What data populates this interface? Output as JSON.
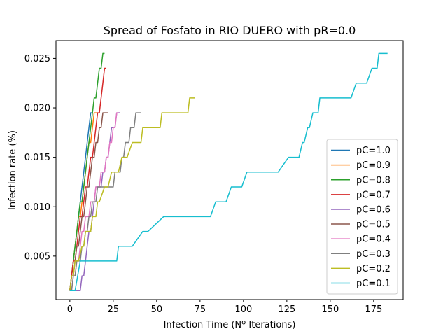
{
  "chart_data": {
    "type": "line",
    "title": "Spread of Fosfato in RIO DUERO with pR=0.0",
    "xlabel": "Infection Time (Nº Iterations)",
    "ylabel": "Infection rate (%)",
    "xlim": [
      -8,
      192
    ],
    "ylim": [
      0.0006,
      0.0268
    ],
    "xticks": [
      0,
      25,
      50,
      75,
      100,
      125,
      150,
      175
    ],
    "yticks": [
      0.005,
      0.01,
      0.015,
      0.02,
      0.025
    ],
    "xtick_labels": [
      "0",
      "25",
      "50",
      "75",
      "100",
      "125",
      "150",
      "175"
    ],
    "ytick_labels": [
      "0.005",
      "0.010",
      "0.015",
      "0.020",
      "0.025"
    ],
    "grid": false,
    "legend_position": "lower-right",
    "series": [
      {
        "name": "pC=1.0",
        "color": "#1f77b4",
        "x": [
          0,
          1,
          2,
          3,
          4,
          5,
          6,
          7,
          8,
          9,
          10,
          11,
          12,
          13
        ],
        "y": [
          0.0015,
          0.003,
          0.0045,
          0.006,
          0.0075,
          0.009,
          0.0105,
          0.012,
          0.0135,
          0.015,
          0.0165,
          0.018,
          0.0195,
          0.0195
        ]
      },
      {
        "name": "pC=0.9",
        "color": "#ff7f0e",
        "x": [
          0,
          1,
          2,
          3,
          4,
          5,
          6,
          7,
          8,
          9,
          10,
          11,
          12,
          13,
          14,
          15,
          16
        ],
        "y": [
          0.0015,
          0.003,
          0.0045,
          0.006,
          0.0075,
          0.009,
          0.009,
          0.0105,
          0.012,
          0.0135,
          0.015,
          0.0165,
          0.0165,
          0.018,
          0.0195,
          0.0195,
          0.0195
        ]
      },
      {
        "name": "pC=0.8",
        "color": "#2ca02c",
        "x": [
          0,
          1,
          2,
          3,
          4,
          5,
          6,
          7,
          8,
          9,
          10,
          11,
          12,
          13,
          14,
          15,
          16,
          17,
          18,
          19,
          20
        ],
        "y": [
          0.0015,
          0.003,
          0.0045,
          0.006,
          0.0075,
          0.009,
          0.0105,
          0.0105,
          0.012,
          0.0135,
          0.015,
          0.0165,
          0.018,
          0.0195,
          0.021,
          0.021,
          0.0225,
          0.024,
          0.024,
          0.0255,
          0.0255
        ]
      },
      {
        "name": "pC=0.7",
        "color": "#d62728",
        "x": [
          0,
          1,
          2,
          3,
          4,
          5,
          6,
          7,
          8,
          9,
          10,
          11,
          12,
          13,
          14,
          15,
          16,
          17,
          18,
          19,
          20,
          21
        ],
        "y": [
          0.0015,
          0.003,
          0.0045,
          0.0045,
          0.006,
          0.0075,
          0.009,
          0.009,
          0.0105,
          0.012,
          0.012,
          0.0135,
          0.015,
          0.015,
          0.0165,
          0.018,
          0.0195,
          0.0195,
          0.021,
          0.0225,
          0.024,
          0.024
        ]
      },
      {
        "name": "pC=0.6",
        "color": "#9467bd",
        "x": [
          0,
          1,
          2,
          3,
          4,
          5,
          6,
          7,
          8,
          9,
          10,
          11,
          12,
          13,
          14,
          15,
          16,
          17,
          18,
          19,
          20,
          21,
          22,
          23,
          24,
          25,
          26,
          27,
          28,
          29
        ],
        "y": [
          0.0015,
          0.0015,
          0.0015,
          0.0015,
          0.0015,
          0.0015,
          0.0015,
          0.003,
          0.003,
          0.0045,
          0.006,
          0.0075,
          0.0075,
          0.009,
          0.0105,
          0.012,
          0.012,
          0.012,
          0.012,
          0.0135,
          0.0135,
          0.015,
          0.015,
          0.0165,
          0.018,
          0.018,
          0.018,
          0.0195,
          0.0195,
          0.0195
        ]
      },
      {
        "name": "pC=0.5",
        "color": "#8c564b",
        "x": [
          0,
          1,
          2,
          3,
          4,
          5,
          6,
          7,
          8,
          9,
          10,
          11,
          12,
          13,
          14,
          15,
          16,
          17,
          18,
          19,
          20,
          21,
          22
        ],
        "y": [
          0.0015,
          0.003,
          0.003,
          0.0045,
          0.006,
          0.006,
          0.0075,
          0.009,
          0.009,
          0.0105,
          0.012,
          0.012,
          0.0135,
          0.015,
          0.015,
          0.0165,
          0.0165,
          0.018,
          0.018,
          0.0195,
          0.0195,
          0.0195,
          0.0195
        ]
      },
      {
        "name": "pC=0.4",
        "color": "#e377c2",
        "x": [
          0,
          1,
          2,
          3,
          4,
          5,
          6,
          7,
          8,
          9,
          10,
          11,
          12,
          13,
          14,
          15,
          16,
          17,
          18,
          19,
          20,
          21,
          22,
          23,
          24,
          25,
          26,
          27,
          28
        ],
        "y": [
          0.0015,
          0.0015,
          0.003,
          0.003,
          0.0045,
          0.0045,
          0.006,
          0.0075,
          0.0075,
          0.009,
          0.009,
          0.009,
          0.0105,
          0.0105,
          0.0105,
          0.012,
          0.012,
          0.012,
          0.0135,
          0.0135,
          0.0135,
          0.015,
          0.015,
          0.0165,
          0.0165,
          0.018,
          0.018,
          0.0195,
          0.0195
        ]
      },
      {
        "name": "pC=0.3",
        "color": "#7f7f7f",
        "x": [
          0,
          1,
          2,
          3,
          4,
          5,
          6,
          7,
          8,
          9,
          10,
          11,
          12,
          13,
          14,
          15,
          16,
          17,
          18,
          19,
          20,
          21,
          22,
          23,
          24,
          25,
          26,
          27,
          28,
          29,
          30,
          31,
          32,
          33,
          34,
          35,
          36,
          37,
          38,
          39,
          40,
          41
        ],
        "y": [
          0.0015,
          0.0015,
          0.003,
          0.003,
          0.0045,
          0.0045,
          0.0045,
          0.006,
          0.006,
          0.0075,
          0.0075,
          0.009,
          0.009,
          0.0105,
          0.0105,
          0.0105,
          0.012,
          0.012,
          0.012,
          0.012,
          0.012,
          0.012,
          0.012,
          0.012,
          0.012,
          0.012,
          0.0135,
          0.0135,
          0.0135,
          0.0135,
          0.015,
          0.015,
          0.0165,
          0.0165,
          0.0165,
          0.018,
          0.018,
          0.018,
          0.0195,
          0.0195,
          0.0195,
          0.0195
        ]
      },
      {
        "name": "pC=0.2",
        "color": "#bcbd22",
        "x": [
          0,
          1,
          2,
          3,
          5,
          7,
          8,
          9,
          10,
          12,
          13,
          14,
          15,
          16,
          17,
          20,
          22,
          24,
          26,
          28,
          30,
          31,
          33,
          36,
          37,
          39,
          41,
          42,
          43,
          44,
          45,
          47,
          49,
          50,
          52,
          53,
          55,
          57,
          60,
          63,
          66,
          68,
          69,
          72
        ],
        "y": [
          0.0015,
          0.003,
          0.003,
          0.0045,
          0.0045,
          0.006,
          0.006,
          0.0075,
          0.0075,
          0.0075,
          0.009,
          0.009,
          0.009,
          0.0105,
          0.0105,
          0.012,
          0.012,
          0.0135,
          0.0135,
          0.0135,
          0.015,
          0.015,
          0.015,
          0.0165,
          0.0165,
          0.0165,
          0.0165,
          0.018,
          0.018,
          0.018,
          0.018,
          0.018,
          0.018,
          0.018,
          0.018,
          0.0195,
          0.0195,
          0.0195,
          0.0195,
          0.0195,
          0.0195,
          0.0195,
          0.021,
          0.021
        ]
      },
      {
        "name": "pC=0.1",
        "color": "#17becf",
        "x": [
          0,
          3,
          6,
          9,
          12,
          15,
          18,
          21,
          24,
          27,
          28,
          36,
          42,
          45,
          54,
          63,
          72,
          81,
          84,
          90,
          93,
          99,
          102,
          108,
          114,
          120,
          126,
          129,
          132,
          134,
          135,
          137,
          138,
          140,
          141,
          143,
          144,
          150,
          156,
          162,
          165,
          171,
          174,
          177,
          178,
          183
        ],
        "y": [
          0.0015,
          0.0015,
          0.0045,
          0.0045,
          0.0045,
          0.0045,
          0.0045,
          0.0045,
          0.0045,
          0.0045,
          0.006,
          0.006,
          0.0075,
          0.0075,
          0.009,
          0.009,
          0.009,
          0.009,
          0.0105,
          0.0105,
          0.012,
          0.012,
          0.0135,
          0.0135,
          0.0135,
          0.0135,
          0.015,
          0.015,
          0.015,
          0.0165,
          0.0165,
          0.018,
          0.018,
          0.0195,
          0.0195,
          0.0195,
          0.021,
          0.021,
          0.021,
          0.021,
          0.0225,
          0.0225,
          0.024,
          0.024,
          0.0255,
          0.0255
        ]
      }
    ]
  }
}
